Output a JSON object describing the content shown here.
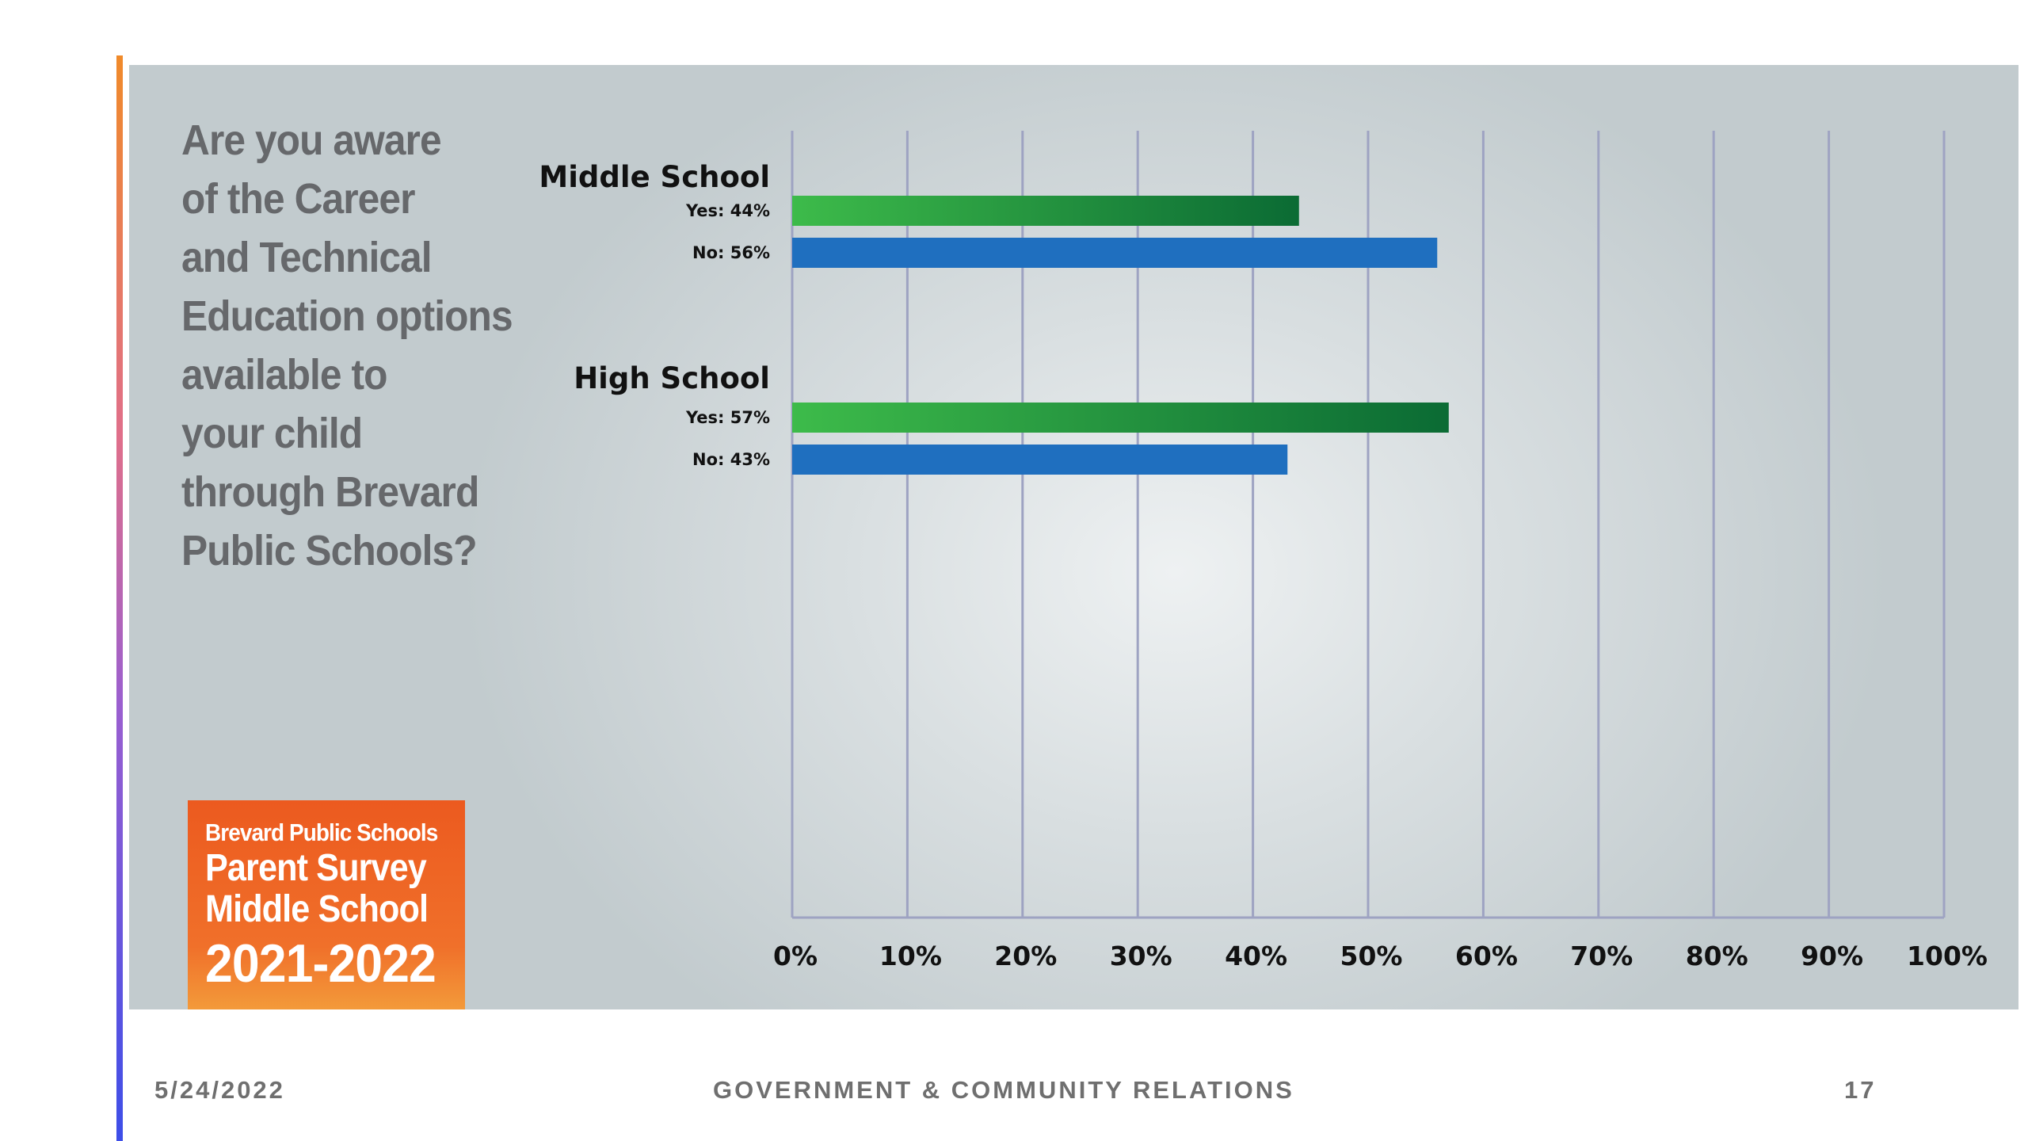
{
  "slide": {
    "question_lines": [
      "Are you aware",
      "of the Career",
      "and Technical",
      "Education options",
      "available to",
      "your child",
      "through Brevard",
      "Public Schools?"
    ],
    "badge": {
      "line1": "Brevard Public Schools",
      "line2": "Parent Survey",
      "line3": "Middle School",
      "line4": "2021-2022"
    },
    "colors": {
      "accent_gradient": [
        "#f08a2a",
        "#3d4ee8"
      ],
      "badge_orange": "#ec5a1f",
      "yes_bar_light": "#3dbb4a",
      "yes_bar_dark": "#0b6b34",
      "no_bar": "#1f6fbf"
    }
  },
  "footer": {
    "date": "5/24/2022",
    "center": "GOVERNMENT & COMMUNITY RELATIONS",
    "page_number": "17"
  },
  "chart_data": {
    "type": "bar",
    "orientation": "horizontal",
    "groups": [
      {
        "name": "Middle School",
        "bars": [
          {
            "label": "Yes: 44%",
            "answer": "Yes",
            "value": 44
          },
          {
            "label": "No: 56%",
            "answer": "No",
            "value": 56
          }
        ]
      },
      {
        "name": "High School",
        "bars": [
          {
            "label": "Yes: 57%",
            "answer": "Yes",
            "value": 57
          },
          {
            "label": "No: 43%",
            "answer": "No",
            "value": 43
          }
        ]
      }
    ],
    "x_ticks": [
      "0%",
      "10%",
      "20%",
      "30%",
      "40%",
      "50%",
      "60%",
      "70%",
      "80%",
      "90%",
      "100%"
    ],
    "xlim": [
      0,
      100
    ],
    "title": "",
    "xlabel": "",
    "ylabel": "",
    "grid": "vertical"
  }
}
